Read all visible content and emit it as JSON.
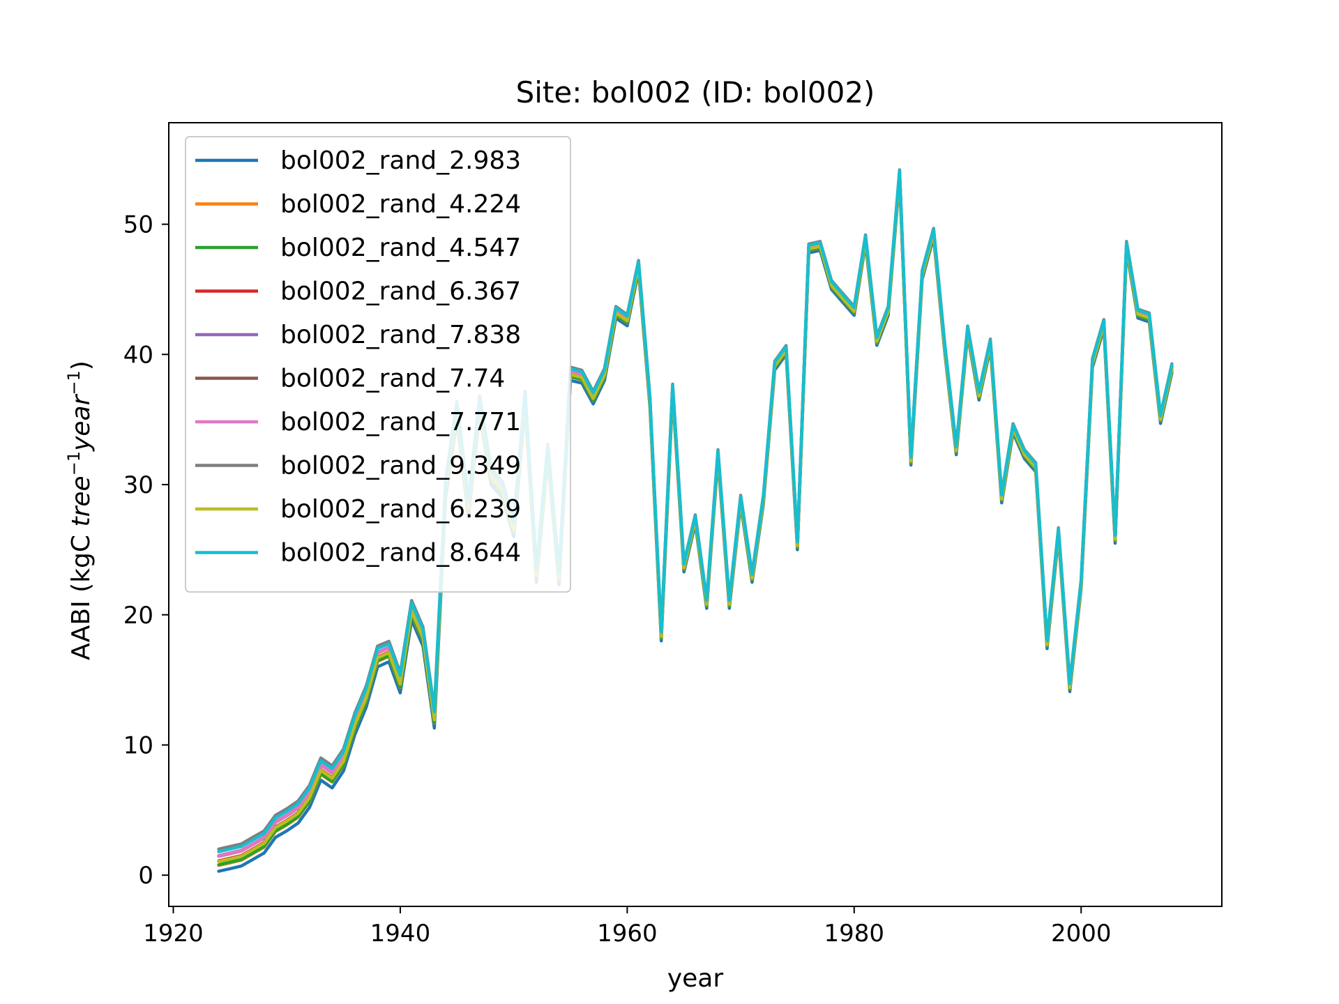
{
  "chart_data": {
    "type": "line",
    "title": "Site: bol002 (ID: bol002)",
    "xlabel": "year",
    "ylabel": "AABI (kgC tree⁻¹year⁻¹)",
    "ylabel_parts": {
      "prefix": "AABI (kgC ",
      "tree": "tree",
      "sup1": "−1",
      "year": "year",
      "sup2": "−1",
      "suffix": ")"
    },
    "xlim": [
      1919.6,
      2012.4
    ],
    "ylim": [
      -2.4,
      57.8
    ],
    "xticks": [
      1920,
      1940,
      1960,
      1980,
      2000
    ],
    "yticks": [
      0,
      10,
      20,
      30,
      40,
      50
    ],
    "grid": false,
    "legend_position": "top-left",
    "x": [
      1924,
      1925,
      1926,
      1927,
      1928,
      1929,
      1930,
      1931,
      1932,
      1933,
      1934,
      1935,
      1936,
      1937,
      1938,
      1939,
      1940,
      1941,
      1942,
      1943,
      1944,
      1945,
      1946,
      1947,
      1948,
      1949,
      1950,
      1951,
      1952,
      1953,
      1954,
      1955,
      1956,
      1957,
      1958,
      1959,
      1960,
      1961,
      1962,
      1963,
      1964,
      1965,
      1966,
      1967,
      1968,
      1969,
      1970,
      1971,
      1972,
      1973,
      1974,
      1975,
      1976,
      1977,
      1978,
      1979,
      1980,
      1981,
      1982,
      1983,
      1984,
      1985,
      1986,
      1987,
      1988,
      1989,
      1990,
      1991,
      1992,
      1993,
      1994,
      1995,
      1996,
      1997,
      1998,
      1999,
      2000,
      2001,
      2002,
      2003,
      2004,
      2005,
      2006,
      2007,
      2008
    ],
    "base": [
      0.3,
      0.5,
      0.7,
      1.2,
      1.7,
      2.9,
      3.4,
      4.0,
      5.2,
      7.3,
      6.7,
      8.0,
      10.8,
      12.9,
      16.0,
      16.4,
      14.0,
      19.6,
      17.6,
      11.3,
      29.0,
      35.0,
      27.5,
      35.5,
      30.0,
      29.0,
      26.0,
      36.0,
      22.5,
      32.0,
      22.3,
      38.0,
      37.8,
      36.2,
      38.0,
      42.8,
      42.2,
      46.4,
      36.0,
      18.0,
      37.0,
      23.3,
      27.0,
      20.5,
      32.0,
      20.5,
      28.5,
      22.5,
      28.5,
      38.8,
      40.0,
      25.0,
      47.8,
      48.0,
      45.0,
      44.0,
      43.0,
      48.5,
      40.7,
      43.0,
      53.5,
      31.5,
      45.8,
      49.0,
      40.0,
      32.3,
      41.5,
      36.5,
      40.5,
      28.6,
      34.0,
      32.0,
      31.0,
      17.4,
      26.0,
      14.1,
      22.0,
      39.0,
      42.0,
      25.5,
      48.0,
      42.8,
      42.5,
      34.7,
      38.6
    ],
    "series": [
      {
        "name": "bol002_rand_2.983",
        "color": "#1f77b4",
        "offset": 0.0
      },
      {
        "name": "bol002_rand_4.224",
        "color": "#ff7f0e",
        "offset": 0.45
      },
      {
        "name": "bol002_rand_4.547",
        "color": "#2ca02c",
        "offset": 0.5
      },
      {
        "name": "bol002_rand_6.367",
        "color": "#d62728",
        "offset": 0.8
      },
      {
        "name": "bol002_rand_7.838",
        "color": "#9467bd",
        "offset": 1.2
      },
      {
        "name": "bol002_rand_7.74",
        "color": "#8c564b",
        "offset": 1.15
      },
      {
        "name": "bol002_rand_7.771",
        "color": "#e377c2",
        "offset": 1.17
      },
      {
        "name": "bol002_rand_9.349",
        "color": "#7f7f7f",
        "offset": 1.7
      },
      {
        "name": "bol002_rand_6.239",
        "color": "#bcbd22",
        "offset": 0.75
      },
      {
        "name": "bol002_rand_8.644",
        "color": "#17becf",
        "offset": 1.5
      }
    ]
  }
}
